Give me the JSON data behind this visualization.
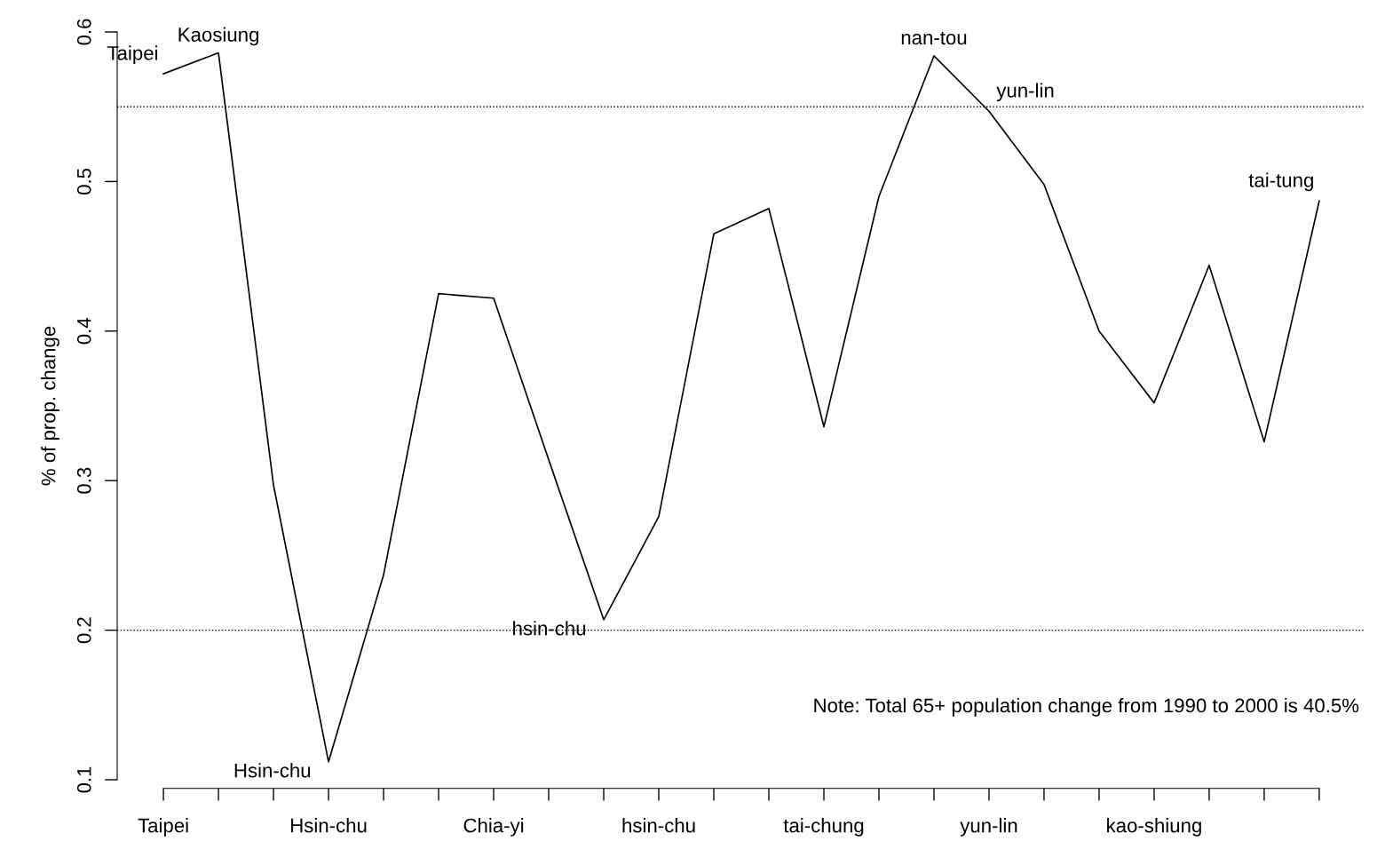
{
  "chart_data": {
    "type": "line",
    "ylabel": "% of prop. change",
    "categories": [
      "Taipei",
      null,
      null,
      "Hsin-chu",
      null,
      null,
      "Chia-yi",
      null,
      null,
      "hsin-chu",
      null,
      null,
      "tai-chung",
      null,
      null,
      "yun-lin",
      null,
      null,
      "kao-shiung",
      null,
      null,
      null
    ],
    "values": [
      0.572,
      0.586,
      0.297,
      0.112,
      0.237,
      0.425,
      0.422,
      0.314,
      0.207,
      0.276,
      0.465,
      0.482,
      0.336,
      0.49,
      0.584,
      0.547,
      0.498,
      0.4,
      0.352,
      0.444,
      0.326,
      0.487
    ],
    "value_labels": [
      "Taipei",
      "Kaosiung",
      null,
      "Hsin-chu",
      null,
      null,
      null,
      null,
      "hsin-chu",
      null,
      null,
      null,
      null,
      null,
      "nan-tou",
      "yun-lin",
      null,
      null,
      null,
      null,
      null,
      "tai-tung"
    ],
    "color": "#000000",
    "ylim": [
      0.1,
      0.6
    ],
    "yticks": [
      0.1,
      0.2,
      0.3,
      0.4,
      0.5,
      0.6
    ],
    "ref_lines": [
      {
        "axis": "y",
        "value": 0.55,
        "line_style": "dotted",
        "color": "#000000"
      },
      {
        "axis": "y",
        "value": 0.2,
        "line_style": "dotted",
        "color": "#000000"
      }
    ],
    "annotations": [
      "Note: Total 65+ population change from 1990 to 2000 is 40.5%"
    ],
    "grid": false,
    "legend": false,
    "marker": "none",
    "line_style": "solid"
  }
}
